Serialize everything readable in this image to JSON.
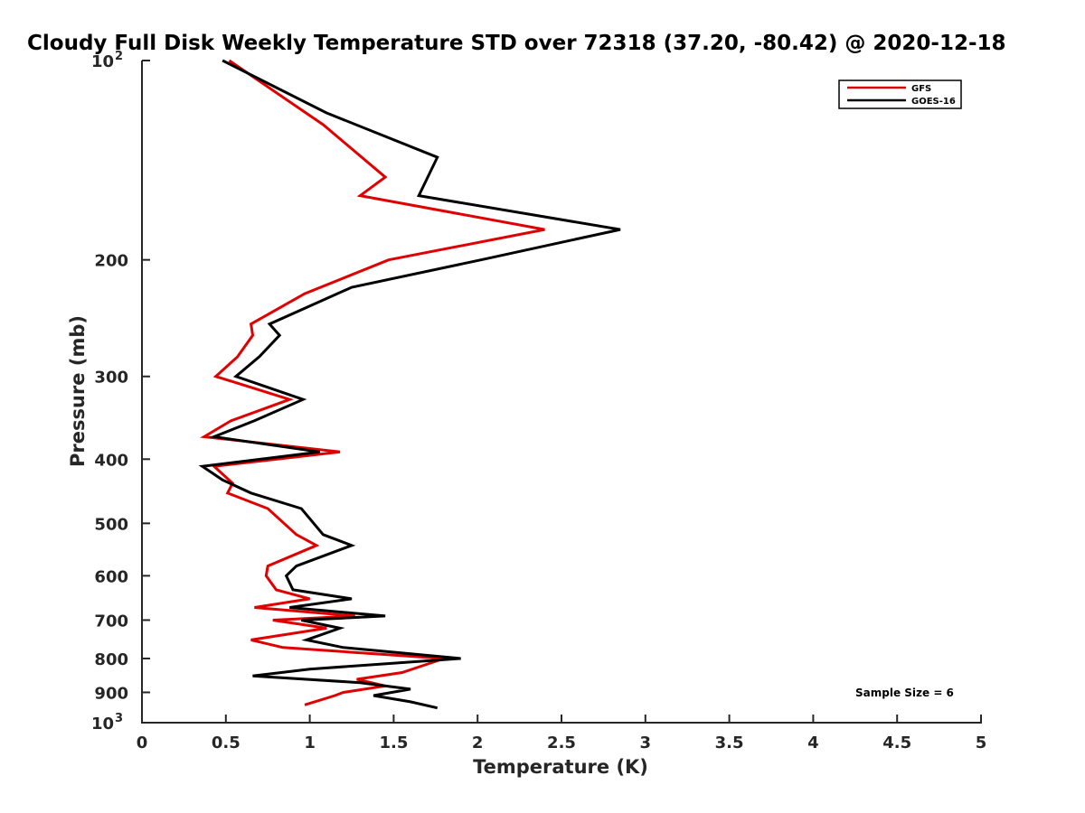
{
  "chart_data": {
    "type": "line",
    "title": "Cloudy Full Disk Weekly Temperature STD over 72318 (37.20, -80.42) @ 2020-12-18",
    "xlabel": "Temperature (K)",
    "ylabel": "Pressure (mb)",
    "xlim": [
      0,
      5
    ],
    "ylim": [
      100,
      1000
    ],
    "y_scale": "log",
    "y_reversed": true,
    "x_ticks": [
      "0",
      "0.5",
      "1",
      "1.5",
      "2",
      "2.5",
      "3",
      "3.5",
      "4",
      "4.5",
      "5"
    ],
    "y_ticks": [
      {
        "value": 100,
        "base": "10",
        "exp": "2"
      },
      {
        "value": 200,
        "label": "200"
      },
      {
        "value": 300,
        "label": "300"
      },
      {
        "value": 400,
        "label": "400"
      },
      {
        "value": 500,
        "label": "500"
      },
      {
        "value": 600,
        "label": "600"
      },
      {
        "value": 700,
        "label": "700"
      },
      {
        "value": 800,
        "label": "800"
      },
      {
        "value": 900,
        "label": "900"
      },
      {
        "value": 1000,
        "base": "10",
        "exp": "3"
      }
    ],
    "legend": {
      "location": "top-right"
    },
    "annotation": "Sample Size = 6",
    "series": [
      {
        "name": "GFS",
        "color": "#e00000",
        "points": [
          [
            0.52,
            100
          ],
          [
            1.08,
            125
          ],
          [
            1.45,
            150
          ],
          [
            1.3,
            160
          ],
          [
            2.4,
            180
          ],
          [
            1.47,
            200
          ],
          [
            0.97,
            225
          ],
          [
            0.65,
            250
          ],
          [
            0.66,
            260
          ],
          [
            0.57,
            280
          ],
          [
            0.44,
            300
          ],
          [
            0.88,
            325
          ],
          [
            0.53,
            350
          ],
          [
            0.37,
            370
          ],
          [
            1.18,
            390
          ],
          [
            0.43,
            410
          ],
          [
            0.54,
            435
          ],
          [
            0.51,
            450
          ],
          [
            0.75,
            475
          ],
          [
            0.92,
            520
          ],
          [
            1.04,
            540
          ],
          [
            0.75,
            580
          ],
          [
            0.74,
            600
          ],
          [
            0.8,
            630
          ],
          [
            1.0,
            650
          ],
          [
            0.67,
            670
          ],
          [
            1.27,
            690
          ],
          [
            0.78,
            700
          ],
          [
            1.1,
            720
          ],
          [
            0.65,
            750
          ],
          [
            0.84,
            770
          ],
          [
            1.8,
            800
          ],
          [
            1.55,
            840
          ],
          [
            1.28,
            860
          ],
          [
            1.45,
            880
          ],
          [
            1.2,
            900
          ],
          [
            1.15,
            910
          ],
          [
            0.97,
            940
          ]
        ]
      },
      {
        "name": "GOES-16",
        "color": "#000000",
        "points": [
          [
            0.48,
            100
          ],
          [
            1.1,
            120
          ],
          [
            1.76,
            140
          ],
          [
            1.65,
            160
          ],
          [
            2.85,
            180
          ],
          [
            2.02,
            200
          ],
          [
            1.25,
            220
          ],
          [
            0.76,
            250
          ],
          [
            0.82,
            260
          ],
          [
            0.7,
            280
          ],
          [
            0.56,
            300
          ],
          [
            0.96,
            325
          ],
          [
            0.67,
            350
          ],
          [
            0.43,
            370
          ],
          [
            1.06,
            390
          ],
          [
            0.36,
            410
          ],
          [
            0.48,
            430
          ],
          [
            0.65,
            450
          ],
          [
            0.95,
            475
          ],
          [
            1.08,
            520
          ],
          [
            1.25,
            540
          ],
          [
            0.92,
            580
          ],
          [
            0.86,
            600
          ],
          [
            0.9,
            630
          ],
          [
            1.25,
            650
          ],
          [
            0.88,
            670
          ],
          [
            1.45,
            690
          ],
          [
            0.95,
            700
          ],
          [
            1.18,
            720
          ],
          [
            0.98,
            750
          ],
          [
            1.2,
            770
          ],
          [
            1.9,
            800
          ],
          [
            1.0,
            830
          ],
          [
            0.66,
            850
          ],
          [
            1.3,
            870
          ],
          [
            1.6,
            890
          ],
          [
            1.38,
            910
          ],
          [
            1.6,
            930
          ],
          [
            1.76,
            950
          ]
        ]
      }
    ]
  }
}
